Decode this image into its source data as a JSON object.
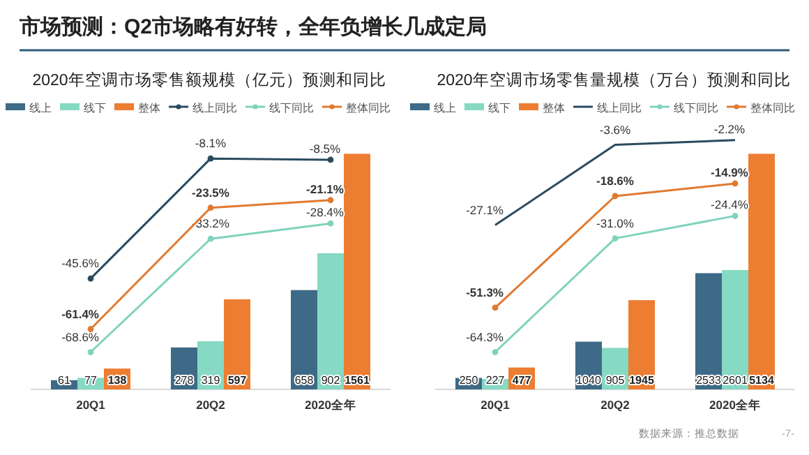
{
  "chart_data": [
    {
      "type": "bar",
      "title": "2020年空调市场零售额规模（亿元）预测和同比",
      "annotations": [
        "市场预测：Q2市场略有好转，全年负增长几成定局"
      ],
      "categories": [
        "20Q1",
        "20Q2",
        "2020全年"
      ],
      "tick_labels": "x",
      "legend": "top",
      "marker": "circle",
      "series": [
        {
          "name": "线上",
          "color": "#3d6a86",
          "values": [
            61,
            278,
            658
          ],
          "value_labels": [
            "61",
            "278",
            "658"
          ]
        },
        {
          "name": "线下",
          "color": "#86d9c3",
          "values": [
            77,
            319,
            902
          ],
          "value_labels": [
            "77",
            "319",
            "902"
          ]
        },
        {
          "name": "整体",
          "color": "#ed7d31",
          "values": [
            138,
            597,
            1561
          ],
          "value_labels": [
            "138",
            "597",
            "1561"
          ]
        },
        {
          "name": "线上同比",
          "type": "line",
          "axis": "y2",
          "color": "#2b4a60",
          "values": [
            -45.6,
            -8.1,
            -8.5
          ],
          "value_labels": [
            "-45.6%",
            "-8.1%",
            "-8.5%"
          ]
        },
        {
          "name": "线下同比",
          "type": "line",
          "axis": "y2",
          "color": "#7fd3bd",
          "values": [
            -68.6,
            -33.2,
            -28.4
          ],
          "value_labels": [
            "-68.6%",
            "-33.2%",
            "-28.4%"
          ]
        },
        {
          "name": "整体同比",
          "type": "line",
          "axis": "y2",
          "color": "#e07a2f",
          "values": [
            -61.4,
            -23.5,
            -21.1
          ],
          "value_labels": [
            "-61.4%",
            "-23.5%",
            "-21.1%"
          ]
        }
      ]
    },
    {
      "type": "bar",
      "title": "2020年空调市场零售量规模（万台）预测和同比",
      "annotations": [
        "数据来源：推总数据",
        "-7-"
      ],
      "categories": [
        "20Q1",
        "20Q2",
        "2020全年"
      ],
      "tick_labels": "x",
      "legend": "top",
      "marker": "circle",
      "series": [
        {
          "name": "线上",
          "color": "#3d6a86",
          "values": [
            250,
            1040,
            2533
          ],
          "value_labels": [
            "250",
            "1040",
            "2533"
          ]
        },
        {
          "name": "线下",
          "color": "#86d9c3",
          "values": [
            227,
            905,
            2601
          ],
          "value_labels": [
            "227",
            "905",
            "2601"
          ]
        },
        {
          "name": "整体",
          "color": "#ed7d31",
          "values": [
            477,
            1945,
            5134
          ],
          "value_labels": [
            "477",
            "1945",
            "5134"
          ]
        },
        {
          "name": "线上同比",
          "type": "line",
          "axis": "y2",
          "marker": "none",
          "color": "#2b4a60",
          "values": [
            -27.1,
            -3.6,
            -2.2
          ],
          "value_labels": [
            "-27.1%",
            "-3.6%",
            "-2.2%"
          ]
        },
        {
          "name": "线下同比",
          "type": "line",
          "axis": "y2",
          "color": "#7fd3bd",
          "values": [
            -64.3,
            -31.0,
            -24.4
          ],
          "value_labels": [
            "-64.3%",
            "-31.0%",
            "-24.4%"
          ]
        },
        {
          "name": "整体同比",
          "type": "line",
          "axis": "y2",
          "color": "#e07a2f",
          "values": [
            -51.3,
            -18.6,
            -14.9
          ],
          "value_labels": [
            "-51.3%",
            "-18.6%",
            "-14.9%"
          ]
        }
      ]
    }
  ]
}
